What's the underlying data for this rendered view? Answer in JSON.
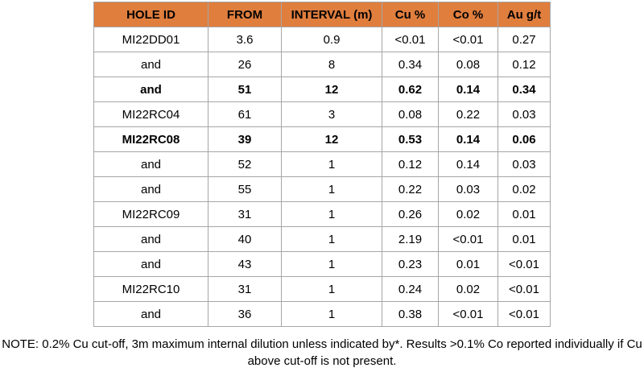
{
  "table": {
    "columns": [
      "HOLE ID",
      "FROM",
      "INTERVAL (m)",
      "Cu %",
      "Co %",
      "Au g/t"
    ],
    "rows": [
      {
        "cells": [
          "MI22DD01",
          "3.6",
          "0.9",
          "<0.01",
          "<0.01",
          "0.27"
        ],
        "bold": false
      },
      {
        "cells": [
          "and",
          "26",
          "8",
          "0.34",
          "0.08",
          "0.12"
        ],
        "bold": false
      },
      {
        "cells": [
          "and",
          "51",
          "12",
          "0.62",
          "0.14",
          "0.34"
        ],
        "bold": true
      },
      {
        "cells": [
          "MI22RC04",
          "61",
          "3",
          "0.08",
          "0.22",
          "0.03"
        ],
        "bold": false
      },
      {
        "cells": [
          "MI22RC08",
          "39",
          "12",
          "0.53",
          "0.14",
          "0.06"
        ],
        "bold": true
      },
      {
        "cells": [
          "and",
          "52",
          "1",
          "0.12",
          "0.14",
          "0.03"
        ],
        "bold": false
      },
      {
        "cells": [
          "and",
          "55",
          "1",
          "0.22",
          "0.03",
          "0.02"
        ],
        "bold": false
      },
      {
        "cells": [
          "MI22RC09",
          "31",
          "1",
          "0.26",
          "0.02",
          "0.01"
        ],
        "bold": false
      },
      {
        "cells": [
          "and",
          "40",
          "1",
          "2.19",
          "<0.01",
          "0.01"
        ],
        "bold": false
      },
      {
        "cells": [
          "and",
          "43",
          "1",
          "0.23",
          "0.01",
          "<0.01"
        ],
        "bold": false
      },
      {
        "cells": [
          "MI22RC10",
          "31",
          "1",
          "0.24",
          "0.02",
          "<0.01"
        ],
        "bold": false
      },
      {
        "cells": [
          "and",
          "36",
          "1",
          "0.38",
          "<0.01",
          "<0.01"
        ],
        "bold": false
      }
    ]
  },
  "note": {
    "line1": "NOTE: 0.2% Cu cut-off, 3m maximum internal dilution unless indicated by*. Results >0.1% Co reported individually if Cu",
    "line2": "above cut-off is not present."
  },
  "colors": {
    "header_bg": "#E07E3E",
    "border": "#A6A6A6",
    "text": "#000000"
  }
}
